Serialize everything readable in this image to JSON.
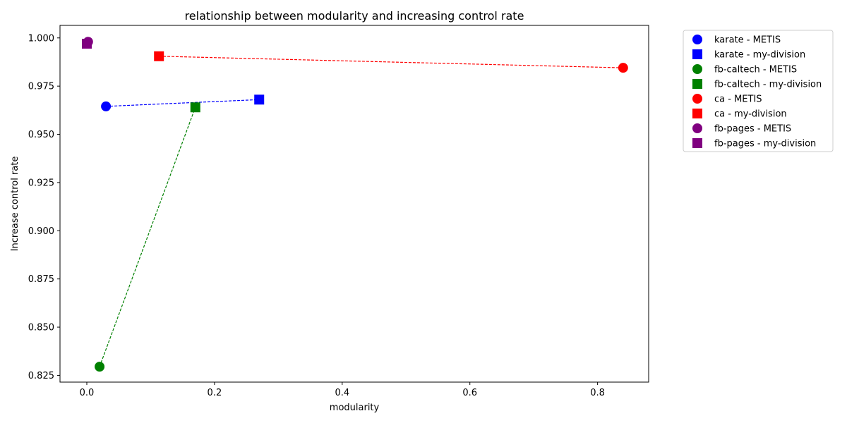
{
  "chart_data": {
    "type": "scatter",
    "title": "relationship between modularity and increasing control rate",
    "xlabel": "modularity",
    "ylabel": "Increase control rate",
    "xlim": [
      -0.042,
      0.88
    ],
    "ylim": [
      0.8215,
      1.0065
    ],
    "xticks": [
      0.0,
      0.2,
      0.4,
      0.6,
      0.8
    ],
    "xtick_labels": [
      "0.0",
      "0.2",
      "0.4",
      "0.6",
      "0.8"
    ],
    "yticks": [
      0.825,
      0.85,
      0.875,
      0.9,
      0.925,
      0.95,
      0.975,
      1.0
    ],
    "ytick_labels": [
      "0.825",
      "0.850",
      "0.875",
      "0.900",
      "0.925",
      "0.950",
      "0.975",
      "1.000"
    ],
    "grid": false,
    "legend_position": "outside-top-right",
    "datasets": [
      {
        "color": "#0000ff",
        "points": [
          {
            "series": "karate - METIS",
            "marker": "circle",
            "x": 0.03,
            "y": 0.9645
          },
          {
            "series": "karate - my-division",
            "marker": "square",
            "x": 0.27,
            "y": 0.968
          }
        ]
      },
      {
        "color": "#008000",
        "points": [
          {
            "series": "fb-caltech - METIS",
            "marker": "circle",
            "x": 0.02,
            "y": 0.8295
          },
          {
            "series": "fb-caltech - my-division",
            "marker": "square",
            "x": 0.17,
            "y": 0.964
          }
        ]
      },
      {
        "color": "#ff0000",
        "points": [
          {
            "series": "ca - METIS",
            "marker": "circle",
            "x": 0.84,
            "y": 0.9845
          },
          {
            "series": "ca - my-division",
            "marker": "square",
            "x": 0.113,
            "y": 0.9905
          }
        ]
      },
      {
        "color": "#800080",
        "points": [
          {
            "series": "fb-pages - METIS",
            "marker": "circle",
            "x": 0.002,
            "y": 0.998
          },
          {
            "series": "fb-pages - my-division",
            "marker": "square",
            "x": 0.0,
            "y": 0.997
          }
        ]
      }
    ]
  }
}
